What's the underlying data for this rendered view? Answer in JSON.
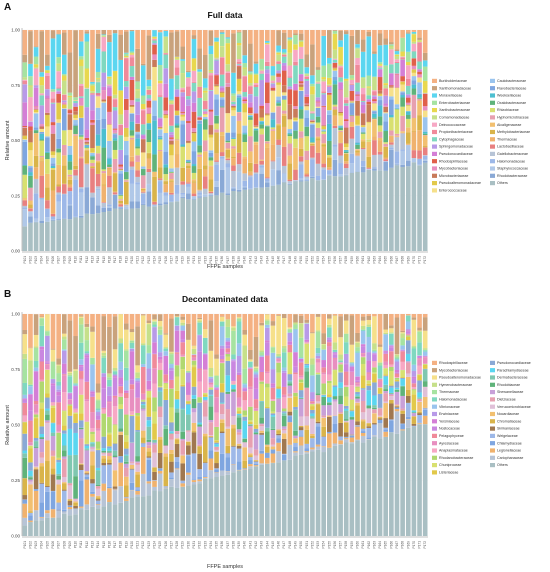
{
  "chart_data": [
    {
      "panel": "A",
      "type": "bar",
      "stacked": true,
      "title": "Full data",
      "xlabel": "FFPE samples",
      "ylabel": "Relative amount",
      "ylim": [
        0,
        1
      ],
      "yticks": [
        "0.00",
        "0.25",
        "0.50",
        "0.75",
        "1.00"
      ],
      "legend_position": "right",
      "n_samples": 72,
      "x_tick_labels": [
        "P101",
        "P102",
        "P103",
        "P104",
        "P105",
        "P106",
        "P107",
        "P108",
        "P109",
        "P110",
        "P111",
        "P112",
        "P113",
        "P114",
        "P115",
        "P116",
        "P117",
        "P118",
        "P119",
        "P120",
        "P121",
        "P122",
        "P123",
        "P124",
        "P125",
        "P126",
        "P127",
        "P128",
        "P129",
        "P130",
        "P131",
        "P132",
        "P133",
        "P134",
        "P135",
        "P136",
        "P137",
        "P138",
        "P139",
        "P140",
        "P141",
        "P142",
        "P143",
        "P144",
        "P145",
        "P146",
        "P147",
        "P148",
        "P149",
        "P150",
        "P151",
        "P152",
        "P153",
        "P154",
        "P155",
        "P156",
        "P157",
        "P158",
        "P159",
        "P160",
        "P161",
        "P162",
        "P163",
        "P164",
        "P165",
        "P166",
        "P167",
        "P168",
        "P169",
        "P170",
        "P171",
        "P172"
      ],
      "others_baseline": [
        0.12,
        0.4
      ],
      "series": [
        {
          "name": "Burkholderiaceae",
          "color": "#f4b183"
        },
        {
          "name": "Xanthomonadaceae",
          "color": "#c9a27c"
        },
        {
          "name": "Moraxellaceae",
          "color": "#5bd6f0"
        },
        {
          "name": "Enterobacteriaceae",
          "color": "#a6e3a1"
        },
        {
          "name": "Xanthobacteraceae",
          "color": "#e8d84f"
        },
        {
          "name": "Comamonadaceae",
          "color": "#c6e08a"
        },
        {
          "name": "Deinococcaceae",
          "color": "#f7a8c4"
        },
        {
          "name": "Propionibacteriaceae",
          "color": "#f08a9a"
        },
        {
          "name": "Cytophagaceae",
          "color": "#7fd8c0"
        },
        {
          "name": "Sphingomonadaceae",
          "color": "#b89ae8"
        },
        {
          "name": "Pseudonocardiaceae",
          "color": "#d47fd6"
        },
        {
          "name": "Rhodospirillaceae",
          "color": "#e0604a"
        },
        {
          "name": "Mycobacteriaceae",
          "color": "#e88fc0"
        },
        {
          "name": "Microbacteriaceae",
          "color": "#c87a5a"
        },
        {
          "name": "Pseudoalteromonadaceae",
          "color": "#e2c94a"
        },
        {
          "name": "Enterococcaceae",
          "color": "#f6e08a"
        },
        {
          "name": "Caulobacteraceae",
          "color": "#9ac4ee"
        },
        {
          "name": "Flavobacteriaceae",
          "color": "#7fa6e0"
        },
        {
          "name": "Weeksellaceae",
          "color": "#4dbfd0"
        },
        {
          "name": "Oxalobacteraceae",
          "color": "#5fb37a"
        },
        {
          "name": "Rhizobiaceae",
          "color": "#d8e070"
        },
        {
          "name": "Hyphomicrobiaceae",
          "color": "#e7a0b0"
        },
        {
          "name": "Alcaligenaceae",
          "color": "#f2c070"
        },
        {
          "name": "Methylobacteriaceae",
          "color": "#d9b44a"
        },
        {
          "name": "Thermaceae",
          "color": "#f0b26e"
        },
        {
          "name": "Lactobacillaceae",
          "color": "#e88080"
        },
        {
          "name": "Gaiellobacteraceae",
          "color": "#b7c4d6"
        },
        {
          "name": "Halomonadaceae",
          "color": "#9db8e8"
        },
        {
          "name": "Staphylococcaceae",
          "color": "#b0c8e8"
        },
        {
          "name": "Rhodobacteraceae",
          "color": "#8aa9d6"
        },
        {
          "name": "Others",
          "color": "#a9bfc3"
        }
      ]
    },
    {
      "panel": "B",
      "type": "bar",
      "stacked": true,
      "title": "Decontaminated data",
      "xlabel": "FFPE samples",
      "ylabel": "Relative amount",
      "ylim": [
        0,
        1
      ],
      "yticks": [
        "0.00",
        "0.25",
        "0.50",
        "0.75",
        "1.00"
      ],
      "legend_position": "right",
      "n_samples": 72,
      "x_tick_labels": [
        "P101",
        "P102",
        "P103",
        "P104",
        "P105",
        "P106",
        "P107",
        "P108",
        "P109",
        "P110",
        "P111",
        "P112",
        "P113",
        "P114",
        "P115",
        "P116",
        "P117",
        "P118",
        "P119",
        "P120",
        "P121",
        "P122",
        "P123",
        "P124",
        "P125",
        "P126",
        "P127",
        "P128",
        "P129",
        "P130",
        "P131",
        "P132",
        "P133",
        "P134",
        "P135",
        "P136",
        "P137",
        "P138",
        "P139",
        "P140",
        "P141",
        "P142",
        "P143",
        "P144",
        "P145",
        "P146",
        "P147",
        "P148",
        "P149",
        "P150",
        "P151",
        "P152",
        "P153",
        "P154",
        "P155",
        "P156",
        "P157",
        "P158",
        "P159",
        "P160",
        "P161",
        "P162",
        "P163",
        "P164",
        "P165",
        "P166",
        "P167",
        "P168",
        "P169",
        "P170",
        "P171",
        "P172"
      ],
      "others_baseline": [
        0.05,
        0.5
      ],
      "series": [
        {
          "name": "Rhodospirillaceae",
          "color": "#f4b183"
        },
        {
          "name": "Mycobacteriaceae",
          "color": "#c9a27c"
        },
        {
          "name": "Pseudoalteromonadaceae",
          "color": "#f6e08a"
        },
        {
          "name": "Hymenobacteraceae",
          "color": "#c6e08a"
        },
        {
          "name": "Thermaceae",
          "color": "#a6e3a1"
        },
        {
          "name": "Halomonadaceae",
          "color": "#7fd8c0"
        },
        {
          "name": "Vibrionaceae",
          "color": "#9ac4ee"
        },
        {
          "name": "Erwiniaceae",
          "color": "#b89ae8"
        },
        {
          "name": "Yersiniaceae",
          "color": "#d47fd6"
        },
        {
          "name": "Nostocaceae",
          "color": "#c987e0"
        },
        {
          "name": "Pelagophyceae",
          "color": "#f08a9a"
        },
        {
          "name": "Ayresiaceae",
          "color": "#e88fc0"
        },
        {
          "name": "Anaplasmataceae",
          "color": "#f7a8c4"
        },
        {
          "name": "Rhodanobacteraceae",
          "color": "#b0d870"
        },
        {
          "name": "Chuniproceae",
          "color": "#d8e070"
        },
        {
          "name": "Listeriaceae",
          "color": "#e2c94a"
        },
        {
          "name": "Pseudonocardiaceae",
          "color": "#8aa9d6"
        },
        {
          "name": "Parachlamydiaceae",
          "color": "#5bd6f0"
        },
        {
          "name": "Dermabacteraceae",
          "color": "#7fc7b0"
        },
        {
          "name": "Rhodobiaceae",
          "color": "#5fb37a"
        },
        {
          "name": "Shewanellaceae",
          "color": "#c8a0d8"
        },
        {
          "name": "Dietziaceae",
          "color": "#e7a0b0"
        },
        {
          "name": "Verrucomicrobiaceae",
          "color": "#e0c0d8"
        },
        {
          "name": "Nocardiaceae",
          "color": "#f2c070"
        },
        {
          "name": "Chromatiaceae",
          "color": "#d9b44a"
        },
        {
          "name": "Simkaniaceae",
          "color": "#a07850"
        },
        {
          "name": "Weigelaceae",
          "color": "#9db8e8"
        },
        {
          "name": "Chlamydiaceae",
          "color": "#7fa6e0"
        },
        {
          "name": "Legionellaceae",
          "color": "#f0b26e"
        },
        {
          "name": "Cariophanaceae",
          "color": "#b7c4d6"
        },
        {
          "name": "Others",
          "color": "#a9bfc3"
        }
      ]
    }
  ]
}
